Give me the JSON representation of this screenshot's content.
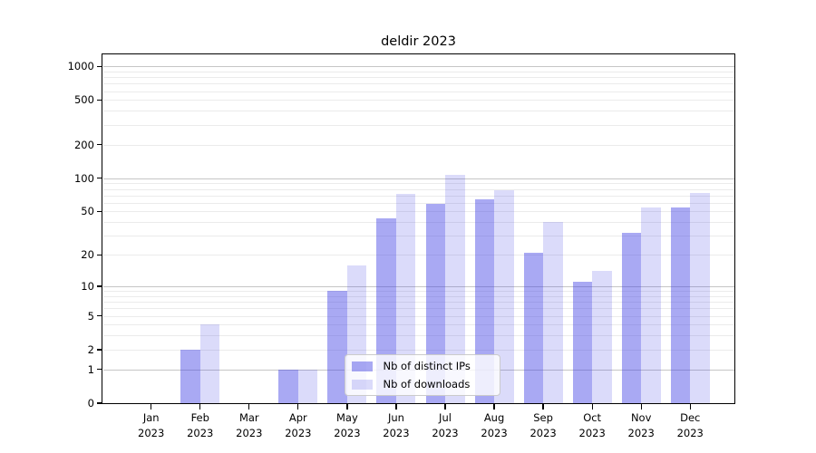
{
  "chart_data": {
    "type": "bar",
    "title": "deldir 2023",
    "categories": [
      "Jan 2023",
      "Feb 2023",
      "Mar 2023",
      "Apr 2023",
      "May 2023",
      "Jun 2023",
      "Jul 2023",
      "Aug 2023",
      "Sep 2023",
      "Oct 2023",
      "Nov 2023",
      "Dec 2023"
    ],
    "series": [
      {
        "name": "Nb of distinct IPs",
        "color": "rgba(60,60,228,0.44)",
        "apparent_hex": "#a9a9f3",
        "values": [
          0,
          2,
          0,
          1,
          9,
          43,
          59,
          65,
          21,
          11,
          32,
          54
        ]
      },
      {
        "name": "Nb of downloads",
        "color": "rgba(60,60,228,0.185)",
        "apparent_hex": "#dbdbf9",
        "values": [
          0,
          4,
          0,
          1,
          16,
          72,
          108,
          78,
          40,
          14,
          54,
          73
        ]
      }
    ],
    "yscale": "log1p",
    "ylim": [
      0,
      1278
    ],
    "y_ticks": [
      0,
      1,
      2,
      5,
      10,
      20,
      50,
      100,
      200,
      500,
      1000
    ],
    "y_major_gridlines": [
      1,
      10,
      100,
      1000
    ],
    "y_minor_gridlines": [
      2,
      3,
      4,
      5,
      6,
      7,
      8,
      9,
      20,
      30,
      40,
      50,
      60,
      70,
      80,
      90,
      200,
      300,
      400,
      500,
      600,
      700,
      800,
      900
    ],
    "grid": "horizontal",
    "legend": {
      "position": "inside-bottom-center",
      "entries": [
        "Nb of distinct IPs",
        "Nb of downloads"
      ]
    },
    "style": {
      "background": "#ffffff",
      "axis_color": "#000000",
      "text_color": "#000000",
      "major_grid_color": "#c6c6c6",
      "minor_grid_color": "#ebebeb"
    }
  }
}
